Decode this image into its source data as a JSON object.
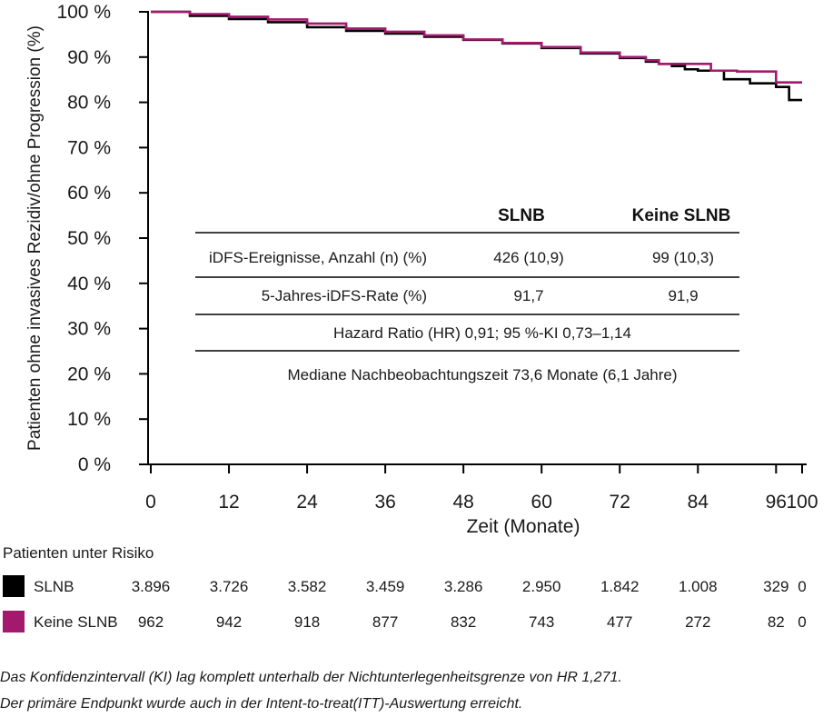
{
  "chart_data": {
    "type": "line",
    "title": "",
    "xlabel": "Zeit (Monate)",
    "ylabel": "Patienten ohne invasives Rezidiv/ohne Progression (%)",
    "xlim": [
      0,
      100
    ],
    "ylim": [
      0,
      100
    ],
    "x_ticks": [
      0,
      12,
      24,
      36,
      48,
      60,
      72,
      84,
      96,
      100
    ],
    "x_tick_labels": [
      "0",
      "12",
      "24",
      "36",
      "48",
      "60",
      "72",
      "84",
      "96",
      "100"
    ],
    "y_ticks": [
      0,
      10,
      20,
      30,
      40,
      50,
      60,
      70,
      80,
      90,
      100
    ],
    "y_tick_labels": [
      "0 %",
      "10 %",
      "20 %",
      "30 %",
      "40 %",
      "50 %",
      "60 %",
      "70 %",
      "80 %",
      "90 %",
      "100 %"
    ],
    "series": [
      {
        "name": "SLNB",
        "color": "#000000",
        "step": true,
        "x": [
          0,
          6,
          12,
          18,
          24,
          30,
          36,
          42,
          48,
          54,
          60,
          66,
          72,
          76,
          78,
          80,
          82,
          84,
          88,
          92,
          96,
          98,
          100
        ],
        "y": [
          100,
          99.1,
          98.4,
          97.7,
          96.6,
          95.8,
          95.2,
          94.5,
          93.8,
          93.0,
          92.0,
          90.8,
          89.8,
          89.0,
          88.5,
          88.0,
          87.3,
          87.0,
          85.1,
          84.2,
          83.4,
          80.5,
          80.5
        ]
      },
      {
        "name": "Keine SLNB",
        "color": "#a3196e",
        "step": true,
        "x": [
          0,
          6,
          12,
          18,
          24,
          30,
          36,
          42,
          48,
          54,
          60,
          66,
          72,
          76,
          78,
          80,
          84,
          86,
          89,
          90,
          92,
          96,
          100
        ],
        "y": [
          100,
          99.5,
          98.9,
          98.3,
          97.4,
          96.3,
          95.6,
          94.8,
          93.9,
          93.1,
          92.2,
          91.0,
          90.0,
          89.3,
          88.5,
          88.5,
          88.5,
          87.0,
          87.0,
          86.8,
          86.8,
          84.4,
          84.4
        ]
      }
    ],
    "table": {
      "header": [
        "",
        "SLNB",
        "Keine SLNB"
      ],
      "rows": [
        [
          "iDFS-Ereignisse, Anzahl (n) (%)",
          "426 (10,9)",
          "99 (10,3)"
        ],
        [
          "5-Jahres-iDFS-Rate (%)",
          "91,7",
          "91,9"
        ]
      ],
      "notes": [
        "Hazard Ratio (HR) 0,91; 95 %-KI 0,73–1,14",
        "Mediane Nachbeobachtungszeit 73,6 Monate (6,1 Jahre)"
      ]
    },
    "at_risk": {
      "title": "Patienten unter Risiko",
      "rows": [
        {
          "name": "SLNB",
          "color": "#000000",
          "values": [
            "3.896",
            "3.726",
            "3.582",
            "3.459",
            "3.286",
            "2.950",
            "1.842",
            "1.008",
            "329",
            "0"
          ]
        },
        {
          "name": "Keine SLNB",
          "color": "#a3196e",
          "values": [
            "962",
            "942",
            "918",
            "877",
            "832",
            "743",
            "477",
            "272",
            "82",
            "0"
          ]
        }
      ]
    }
  },
  "footnotes": [
    "Das Konfidenzintervall (KI) lag komplett unterhalb der Nichtunterlegenheitsgrenze von HR 1,271.",
    "Der primäre Endpunkt wurde auch in der Intent-to-treat(ITT)-Auswertung erreicht."
  ]
}
